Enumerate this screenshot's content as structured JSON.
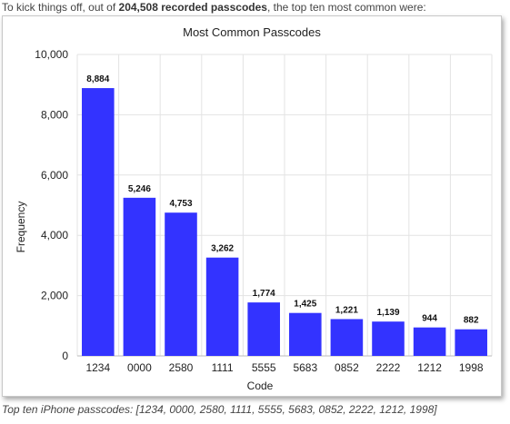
{
  "intro": {
    "prefix": "To kick things off, out of ",
    "bold": "204,508 recorded passcodes",
    "suffix": ", the top ten most common were:"
  },
  "caption": "Top ten iPhone passcodes: [1234, 0000, 2580, 1111, 5555, 5683, 0852, 2222, 1212, 1998]",
  "chart_data": {
    "type": "bar",
    "title": "Most Common Passcodes",
    "xlabel": "Code",
    "ylabel": "Frequency",
    "categories": [
      "1234",
      "0000",
      "2580",
      "1111",
      "5555",
      "5683",
      "0852",
      "2222",
      "1212",
      "1998"
    ],
    "values": [
      8884,
      5246,
      4753,
      3262,
      1774,
      1425,
      1221,
      1139,
      944,
      882
    ],
    "data_labels": [
      "8,884",
      "5,246",
      "4,753",
      "3,262",
      "1,774",
      "1,425",
      "1,221",
      "1,139",
      "944",
      "882"
    ],
    "ylim": [
      0,
      10000
    ],
    "yticks": [
      0,
      2000,
      4000,
      6000,
      8000,
      10000
    ],
    "ytick_labels": [
      "0",
      "2,000",
      "4,000",
      "6,000",
      "8,000",
      "10,000"
    ],
    "bar_color": "#3333ff",
    "grid": true,
    "legend": "none"
  }
}
